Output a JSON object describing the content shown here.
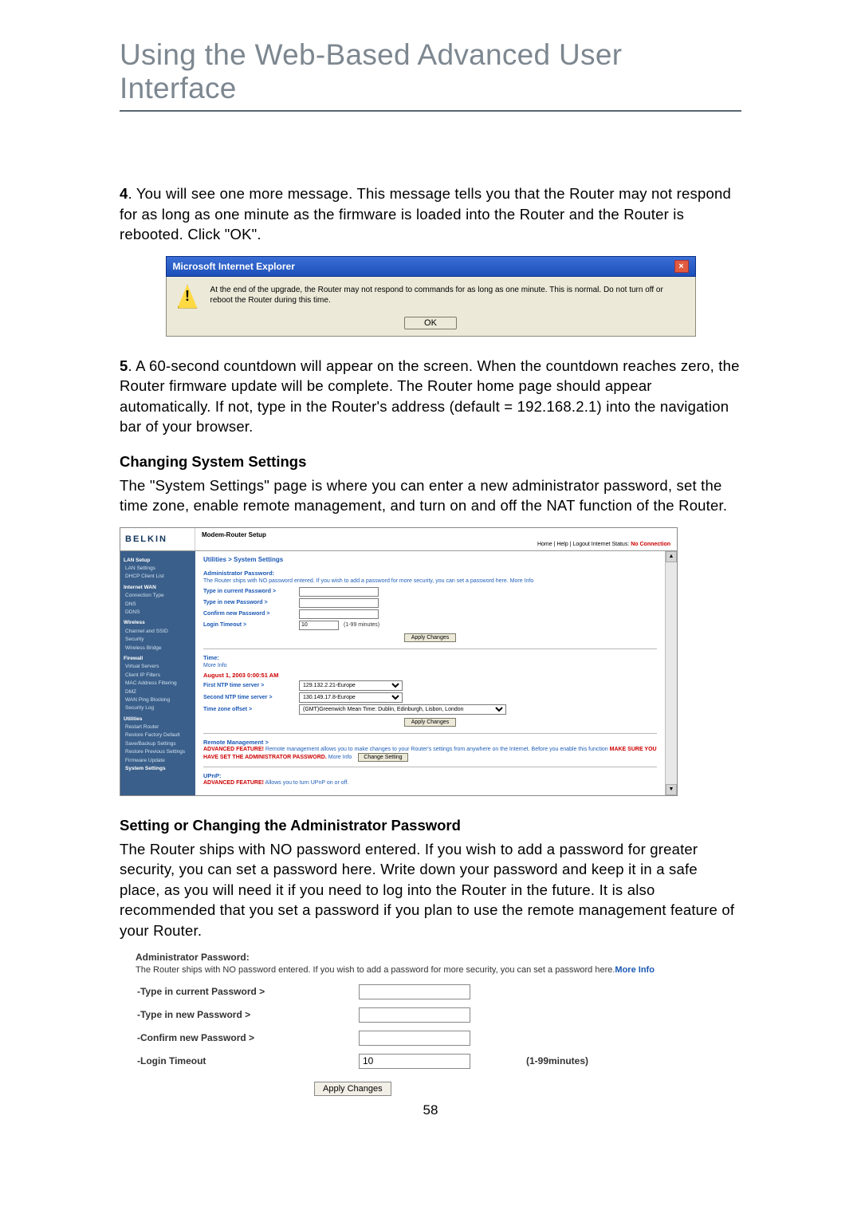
{
  "page_title": "Using the Web-Based Advanced User Interface",
  "page_number": "58",
  "step4": {
    "prefix": "4",
    "text": ". You will see one more message. This message tells you that the Router may not respond for as long as one minute as the firmware is loaded into the Router and the Router is rebooted. Click \"OK\"."
  },
  "dialog": {
    "title": "Microsoft Internet Explorer",
    "message": "At the end of the upgrade, the Router may not respond to commands for as long as one minute. This is normal. Do not turn off or reboot the Router during this time.",
    "ok": "OK",
    "close": "×",
    "warn": "!",
    "colors": {
      "title_bg_start": "#3a6fd6",
      "title_bg_end": "#1d4fb8",
      "body_bg": "#ece9d8"
    }
  },
  "step5": {
    "prefix": "5",
    "text": ". A 60-second countdown will appear on the screen. When the countdown reaches zero, the Router firmware update will be complete. The Router home page should appear automatically. If not, type in the Router's address (default = 192.168.2.1) into the navigation bar of your browser."
  },
  "sec_change": "Changing System Settings",
  "sec_change_body": "The \"System Settings\" page is where you can enter a new administrator password, set the time zone, enable remote management, and turn on and off the NAT function of the Router.",
  "router": {
    "brand": "BELKIN",
    "setup_title": "Modem-Router Setup",
    "header_links": "Home | Help | Logout    Internet Status:",
    "header_status": "No Connection",
    "breadcrumb": "Utilities > System Settings",
    "sidebar": {
      "groups": [
        {
          "title": "LAN Setup",
          "items": [
            "LAN Settings",
            "DHCP Client List"
          ]
        },
        {
          "title": "Internet WAN",
          "items": [
            "Connection Type",
            "DNS",
            "DDNS"
          ]
        },
        {
          "title": "Wireless",
          "items": [
            "Channel and SSID",
            "Security",
            "Wireless Bridge"
          ]
        },
        {
          "title": "Firewall",
          "items": [
            "Virtual Servers",
            "Client IP Filters",
            "MAC Address Filtering",
            "DMZ",
            "WAN Ping Blocking",
            "Security Log"
          ]
        },
        {
          "title": "Utilities",
          "items": [
            "Restart Router",
            "Restore Factory Default",
            "Save/Backup Settings",
            "Restore Previous Settings",
            "Firmware Update",
            "System Settings"
          ]
        }
      ],
      "selected": "System Settings"
    },
    "admin": {
      "title": "Administrator Password:",
      "desc": "The Router ships with NO password entered. If you wish to add a password for more security, you can set a password here. More Info",
      "lbl_current": "Type in current Password >",
      "lbl_new": "Type in new Password >",
      "lbl_confirm": "Confirm new Password >",
      "lbl_timeout": "Login Timeout >",
      "timeout_val": "10",
      "timeout_hint": "(1-99 minutes)",
      "apply": "Apply Changes"
    },
    "time": {
      "title": "Time:",
      "more": "More Info",
      "date": "August 1, 2003 0:00:51 AM",
      "lbl_first": "First NTP time server >",
      "val_first": "129.132.2.21-Europe",
      "lbl_second": "Second NTP time server >",
      "val_second": "130.149.17.8-Europe",
      "lbl_offset": "Time zone offset >",
      "val_offset": "(GMT)Greenwich Mean Time: Dublin, Edinburgh, Lisbon, London",
      "apply": "Apply Changes"
    },
    "remote": {
      "title": "Remote Management >",
      "desc_pre": "ADVANCED FEATURE!",
      "desc": "Remote management allows you to make changes to your Router's settings from anywhere on the Internet. Before you enable this function ",
      "warn": "MAKE SURE YOU HAVE SET THE ADMINISTRATOR PASSWORD.",
      "more": "More Info",
      "change": "Change Setting"
    },
    "upnp": {
      "title": "UPnP:",
      "desc_pre": "ADVANCED FEATURE!",
      "desc": "Allows you to turn UPnP on or off."
    },
    "scroll": {
      "up": "▲",
      "down": "▼"
    }
  },
  "sec_pw": "Setting or Changing the Administrator Password",
  "sec_pw_body": "The Router ships with NO password entered. If you wish to add a password for greater security, you can set a password here. Write down your password and keep it in a safe place, as you will need it if you need to log into the Router in the future. It is also recommended that you set a password if you plan to use the remote management feature of your Router.",
  "pwform": {
    "title": "Administrator Password:",
    "desc": "The Router ships with NO password entered. If you wish to add a password for more security, you can set a password here.",
    "more": "More Info",
    "lbl_current": "-Type in current Password >",
    "lbl_new": "-Type in new Password >",
    "lbl_confirm": "-Confirm new Password >",
    "lbl_timeout": "-Login Timeout",
    "timeout_val": "10",
    "timeout_hint": "(1-99minutes)",
    "apply": "Apply Changes"
  }
}
